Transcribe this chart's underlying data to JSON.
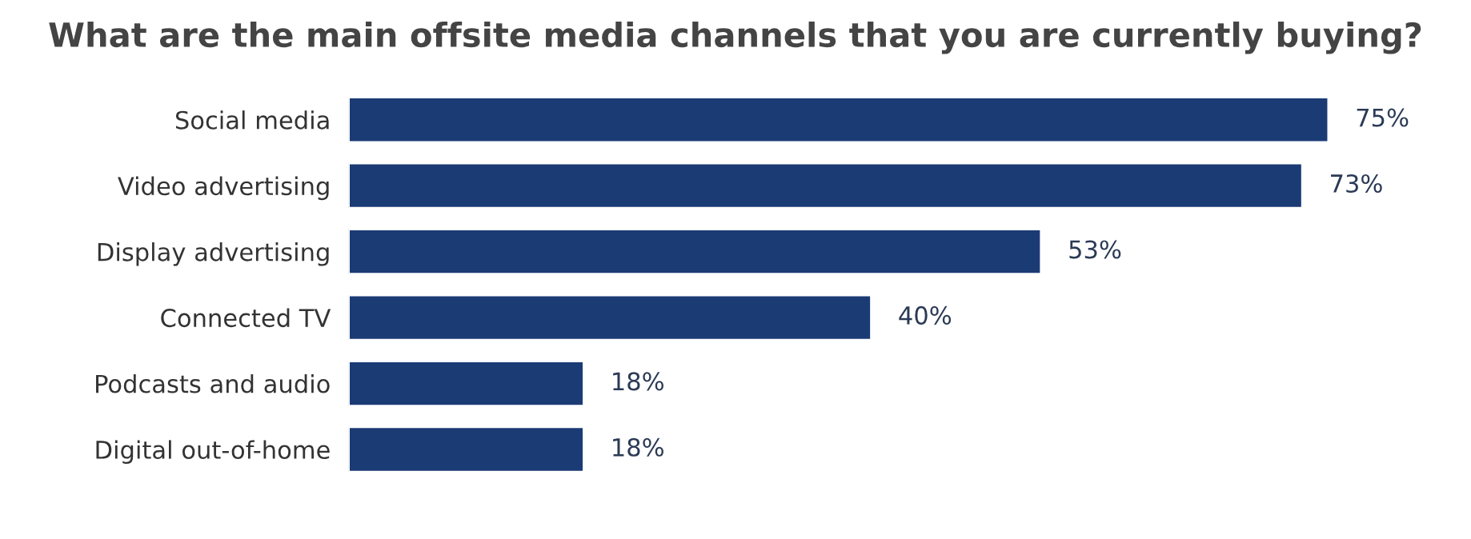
{
  "chart_data": {
    "type": "bar",
    "orientation": "horizontal",
    "title": "What are the main offsite media channels that you are currently buying?",
    "categories": [
      "Social media",
      "Video advertising",
      "Display advertising",
      "Connected TV",
      "Podcasts and audio",
      "Digital out-of-home"
    ],
    "values": [
      75,
      73,
      53,
      40,
      18,
      18
    ],
    "value_labels": [
      "75%",
      "73%",
      "53%",
      "40%",
      "18%",
      "18%"
    ],
    "color": "#1b3b75",
    "grid": false,
    "legend": false
  }
}
